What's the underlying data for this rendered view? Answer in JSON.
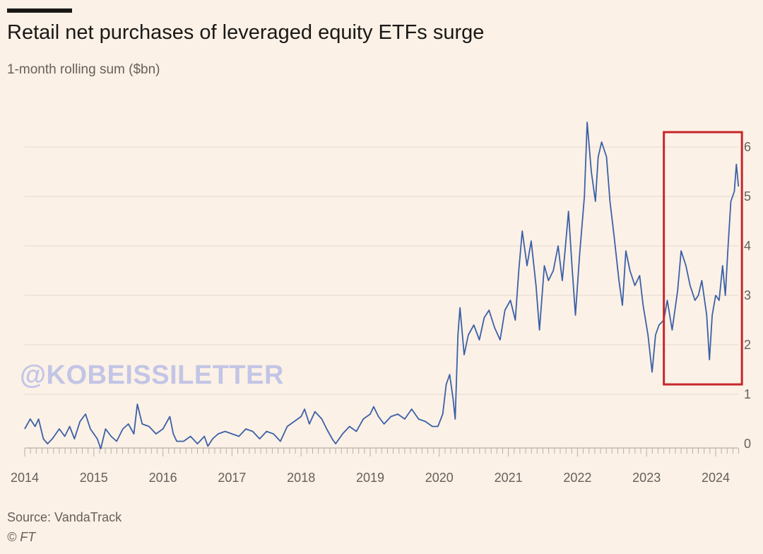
{
  "header": {
    "title": "Retail net purchases of leveraged equity ETFs surge",
    "subtitle": "1-month rolling sum ($bn)"
  },
  "footer": {
    "source": "Source: VandaTrack",
    "copyright": "© FT"
  },
  "watermark": "@KOBEISSILETTER",
  "colors": {
    "background": "#fbf1e6",
    "line": "#3c60a8",
    "grid": "#e3d9cf",
    "highlight": "#c8262c",
    "text": "#66605c"
  },
  "chart_data": {
    "type": "line",
    "title": "Retail net purchases of leveraged equity ETFs surge",
    "subtitle": "1-month rolling sum ($bn)",
    "xlabel": "",
    "ylabel": "",
    "xlim": [
      2014,
      2024.4
    ],
    "ylim": [
      0,
      6.5
    ],
    "x_ticks": [
      2014,
      2015,
      2016,
      2017,
      2018,
      2019,
      2020,
      2021,
      2022,
      2023,
      2024
    ],
    "x_tick_labels": [
      "2014",
      "2015",
      "2016",
      "2017",
      "2018",
      "2019",
      "2020",
      "2021",
      "2022",
      "2023",
      "2024"
    ],
    "y_ticks": [
      0,
      1,
      2,
      3,
      4,
      5,
      6
    ],
    "y_tick_labels": [
      "0",
      "1",
      "2",
      "3",
      "4",
      "5",
      "6"
    ],
    "y_axis_side": "right",
    "grid": true,
    "highlight_region": {
      "x_start": 2023.25,
      "x_end": 2024.38,
      "y_start": 1.2,
      "y_end": 6.3
    },
    "series": [
      {
        "name": "Retail net purchases",
        "points": [
          [
            2014.0,
            0.3
          ],
          [
            2014.08,
            0.5
          ],
          [
            2014.15,
            0.35
          ],
          [
            2014.2,
            0.5
          ],
          [
            2014.27,
            0.1
          ],
          [
            2014.33,
            0.0
          ],
          [
            2014.4,
            0.1
          ],
          [
            2014.5,
            0.3
          ],
          [
            2014.58,
            0.15
          ],
          [
            2014.65,
            0.35
          ],
          [
            2014.72,
            0.1
          ],
          [
            2014.8,
            0.45
          ],
          [
            2014.88,
            0.6
          ],
          [
            2014.95,
            0.3
          ],
          [
            2015.05,
            0.1
          ],
          [
            2015.1,
            -0.1
          ],
          [
            2015.17,
            0.3
          ],
          [
            2015.25,
            0.15
          ],
          [
            2015.33,
            0.05
          ],
          [
            2015.42,
            0.3
          ],
          [
            2015.5,
            0.4
          ],
          [
            2015.58,
            0.2
          ],
          [
            2015.63,
            0.8
          ],
          [
            2015.7,
            0.4
          ],
          [
            2015.8,
            0.35
          ],
          [
            2015.9,
            0.2
          ],
          [
            2016.0,
            0.3
          ],
          [
            2016.1,
            0.55
          ],
          [
            2016.15,
            0.2
          ],
          [
            2016.2,
            0.05
          ],
          [
            2016.3,
            0.05
          ],
          [
            2016.4,
            0.15
          ],
          [
            2016.5,
            0.0
          ],
          [
            2016.6,
            0.15
          ],
          [
            2016.65,
            -0.05
          ],
          [
            2016.72,
            0.1
          ],
          [
            2016.8,
            0.2
          ],
          [
            2016.9,
            0.25
          ],
          [
            2017.0,
            0.2
          ],
          [
            2017.1,
            0.15
          ],
          [
            2017.2,
            0.3
          ],
          [
            2017.3,
            0.25
          ],
          [
            2017.4,
            0.1
          ],
          [
            2017.5,
            0.25
          ],
          [
            2017.6,
            0.2
          ],
          [
            2017.7,
            0.05
          ],
          [
            2017.8,
            0.35
          ],
          [
            2017.9,
            0.45
          ],
          [
            2018.0,
            0.55
          ],
          [
            2018.05,
            0.7
          ],
          [
            2018.12,
            0.4
          ],
          [
            2018.2,
            0.65
          ],
          [
            2018.3,
            0.5
          ],
          [
            2018.37,
            0.3
          ],
          [
            2018.45,
            0.1
          ],
          [
            2018.5,
            0.0
          ],
          [
            2018.6,
            0.2
          ],
          [
            2018.7,
            0.35
          ],
          [
            2018.8,
            0.25
          ],
          [
            2018.9,
            0.5
          ],
          [
            2019.0,
            0.6
          ],
          [
            2019.05,
            0.75
          ],
          [
            2019.12,
            0.55
          ],
          [
            2019.2,
            0.4
          ],
          [
            2019.3,
            0.55
          ],
          [
            2019.4,
            0.6
          ],
          [
            2019.5,
            0.5
          ],
          [
            2019.6,
            0.7
          ],
          [
            2019.7,
            0.5
          ],
          [
            2019.8,
            0.45
          ],
          [
            2019.9,
            0.35
          ],
          [
            2019.98,
            0.35
          ],
          [
            2020.05,
            0.6
          ],
          [
            2020.1,
            1.2
          ],
          [
            2020.15,
            1.4
          ],
          [
            2020.2,
            0.9
          ],
          [
            2020.23,
            0.5
          ],
          [
            2020.27,
            2.2
          ],
          [
            2020.3,
            2.75
          ],
          [
            2020.36,
            1.8
          ],
          [
            2020.42,
            2.2
          ],
          [
            2020.5,
            2.4
          ],
          [
            2020.58,
            2.1
          ],
          [
            2020.65,
            2.55
          ],
          [
            2020.72,
            2.7
          ],
          [
            2020.8,
            2.35
          ],
          [
            2020.88,
            2.1
          ],
          [
            2020.95,
            2.7
          ],
          [
            2021.03,
            2.9
          ],
          [
            2021.1,
            2.5
          ],
          [
            2021.15,
            3.5
          ],
          [
            2021.2,
            4.3
          ],
          [
            2021.27,
            3.6
          ],
          [
            2021.33,
            4.1
          ],
          [
            2021.4,
            3.2
          ],
          [
            2021.45,
            2.3
          ],
          [
            2021.52,
            3.6
          ],
          [
            2021.58,
            3.3
          ],
          [
            2021.65,
            3.5
          ],
          [
            2021.72,
            4.0
          ],
          [
            2021.78,
            3.3
          ],
          [
            2021.82,
            3.9
          ],
          [
            2021.87,
            4.7
          ],
          [
            2021.92,
            3.6
          ],
          [
            2021.97,
            2.6
          ],
          [
            2022.03,
            3.8
          ],
          [
            2022.1,
            5.0
          ],
          [
            2022.14,
            6.5
          ],
          [
            2022.2,
            5.5
          ],
          [
            2022.26,
            4.9
          ],
          [
            2022.3,
            5.8
          ],
          [
            2022.35,
            6.1
          ],
          [
            2022.42,
            5.8
          ],
          [
            2022.47,
            4.9
          ],
          [
            2022.53,
            4.2
          ],
          [
            2022.6,
            3.3
          ],
          [
            2022.65,
            2.8
          ],
          [
            2022.7,
            3.9
          ],
          [
            2022.76,
            3.5
          ],
          [
            2022.83,
            3.2
          ],
          [
            2022.9,
            3.4
          ],
          [
            2022.95,
            2.8
          ],
          [
            2023.02,
            2.2
          ],
          [
            2023.08,
            1.45
          ],
          [
            2023.13,
            2.2
          ],
          [
            2023.18,
            2.4
          ],
          [
            2023.25,
            2.5
          ],
          [
            2023.3,
            2.9
          ],
          [
            2023.37,
            2.3
          ],
          [
            2023.45,
            3.1
          ],
          [
            2023.5,
            3.9
          ],
          [
            2023.57,
            3.6
          ],
          [
            2023.63,
            3.2
          ],
          [
            2023.7,
            2.9
          ],
          [
            2023.75,
            3.0
          ],
          [
            2023.8,
            3.3
          ],
          [
            2023.87,
            2.6
          ],
          [
            2023.91,
            1.7
          ],
          [
            2023.95,
            2.6
          ],
          [
            2024.0,
            3.0
          ],
          [
            2024.05,
            2.9
          ],
          [
            2024.1,
            3.6
          ],
          [
            2024.14,
            3.0
          ],
          [
            2024.18,
            4.0
          ],
          [
            2024.22,
            4.9
          ],
          [
            2024.27,
            5.1
          ],
          [
            2024.3,
            5.65
          ],
          [
            2024.33,
            5.2
          ]
        ]
      }
    ]
  }
}
